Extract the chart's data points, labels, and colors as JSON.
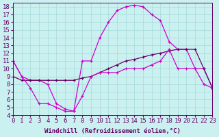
{
  "xlabel": "Windchill (Refroidissement éolien,°C)",
  "ylabel": "",
  "background_color": "#caf0f0",
  "line_color_bright": "#cc00cc",
  "line_color_dark": "#660066",
  "grid_color": "#aadddd",
  "xlim": [
    0,
    23
  ],
  "ylim": [
    4,
    18.5
  ],
  "xticks": [
    0,
    1,
    2,
    3,
    4,
    5,
    6,
    7,
    8,
    9,
    10,
    11,
    12,
    13,
    14,
    15,
    16,
    17,
    18,
    19,
    20,
    21,
    22,
    23
  ],
  "yticks": [
    4,
    5,
    6,
    7,
    8,
    9,
    10,
    11,
    12,
    13,
    14,
    15,
    16,
    17,
    18
  ],
  "line1_x": [
    0,
    1,
    2,
    3,
    4,
    5,
    6,
    7,
    8,
    9,
    10,
    11,
    12,
    13,
    14,
    15,
    16,
    17,
    18,
    19,
    20,
    21,
    22,
    23
  ],
  "line1_y": [
    11.0,
    9.0,
    8.5,
    8.5,
    8.0,
    5.5,
    4.8,
    4.5,
    11.0,
    11.0,
    14.0,
    16.0,
    17.5,
    18.0,
    18.2,
    18.0,
    17.0,
    16.2,
    13.5,
    12.5,
    12.5,
    10.0,
    10.0,
    7.5
  ],
  "line2_x": [
    0,
    1,
    2,
    3,
    4,
    5,
    6,
    7,
    8,
    9,
    10,
    11,
    12,
    13,
    14,
    15,
    16,
    17,
    18,
    19,
    20,
    21,
    22,
    23
  ],
  "line2_y": [
    9.0,
    8.5,
    8.5,
    8.5,
    8.5,
    8.5,
    8.5,
    8.5,
    8.8,
    9.0,
    9.5,
    10.0,
    10.5,
    11.0,
    11.2,
    11.5,
    11.8,
    12.0,
    12.3,
    12.5,
    12.5,
    12.5,
    10.0,
    7.5
  ],
  "line3_x": [
    0,
    1,
    2,
    3,
    4,
    5,
    6,
    7,
    8,
    9,
    10,
    11,
    12,
    13,
    14,
    15,
    16,
    17,
    18,
    19,
    20,
    21,
    22,
    23
  ],
  "line3_y": [
    11.0,
    9.0,
    7.5,
    5.5,
    5.5,
    5.0,
    4.5,
    4.5,
    6.5,
    9.0,
    9.5,
    9.5,
    9.5,
    10.0,
    10.0,
    10.0,
    10.5,
    11.0,
    12.5,
    10.0,
    10.0,
    10.0,
    8.0,
    7.5
  ],
  "font_size": 6.5
}
